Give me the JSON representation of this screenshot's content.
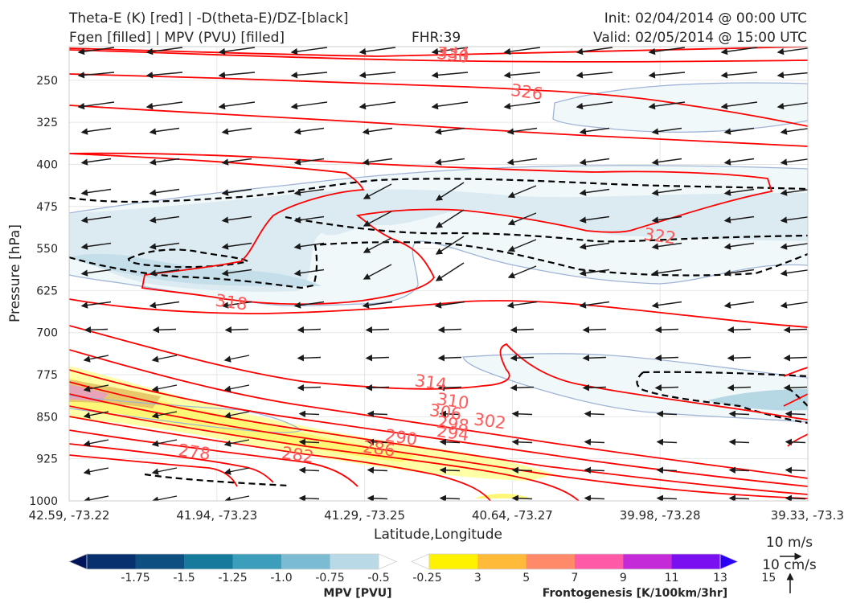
{
  "header": {
    "title_left_1": "Theta-E (K) [red] | -D(theta-E)/DZ-[black]",
    "title_left_2": "Fgen [filled] | MPV (PVU) [filled]",
    "title_center": "FHR:39",
    "title_right_1": "Init: 02/04/2014 @ 00:00 UTC",
    "title_right_2": "Valid: 02/05/2014 @ 15:00 UTC"
  },
  "chart_data": {
    "type": "cross-section",
    "xlabel": "Latitude,Longitude",
    "ylabel": "Pressure [hPa]",
    "x_ticks": [
      "42.59, -73.22",
      "41.94, -73.23",
      "41.29, -73.25",
      "40.64, -73.27",
      "39.98, -73.28",
      "39.33, -73.3"
    ],
    "y_ticks": [
      250,
      325,
      400,
      475,
      550,
      625,
      700,
      775,
      850,
      925,
      1000
    ],
    "ylim": [
      1000,
      190
    ],
    "grid": true,
    "theta_e_contour_labels": [
      {
        "value": "334",
        "x": 0.5,
        "p": 200
      },
      {
        "value": "330",
        "x": 0.5,
        "p": 205
      },
      {
        "value": "326",
        "x": 0.6,
        "p": 271
      },
      {
        "value": "322",
        "x": 0.78,
        "p": 528
      },
      {
        "value": "318",
        "x": 0.2,
        "p": 646
      },
      {
        "value": "314",
        "x": 0.47,
        "p": 789
      },
      {
        "value": "310",
        "x": 0.5,
        "p": 822
      },
      {
        "value": "306",
        "x": 0.49,
        "p": 842
      },
      {
        "value": "302",
        "x": 0.55,
        "p": 858
      },
      {
        "value": "298",
        "x": 0.5,
        "p": 863
      },
      {
        "value": "294",
        "x": 0.5,
        "p": 879
      },
      {
        "value": "290",
        "x": 0.43,
        "p": 887
      },
      {
        "value": "286",
        "x": 0.4,
        "p": 907
      },
      {
        "value": "282",
        "x": 0.29,
        "p": 918
      },
      {
        "value": "278",
        "x": 0.15,
        "p": 913
      }
    ],
    "wind_reference": {
      "horizontal": "10 m/s",
      "vertical": "10 cm/s"
    },
    "colorbars": [
      {
        "title": "MPV [PVU]",
        "ticks": [
          "-1.75",
          "-1.5",
          "-1.25",
          "-1.0",
          "-0.75",
          "-0.5",
          "-0.25"
        ],
        "colors": [
          "#00145a",
          "#06306e",
          "#0d4f80",
          "#167a9c",
          "#3c9ebb",
          "#7bbcd2",
          "#bad9e6",
          "#ffffff"
        ]
      },
      {
        "title": "Frontogenesis [K/100km/3hr]",
        "ticks": [
          "3",
          "5",
          "7",
          "9",
          "11",
          "13",
          "15"
        ],
        "colors": [
          "#ffffff",
          "#fff200",
          "#ffba3a",
          "#ff8a6a",
          "#ff5aa8",
          "#c42ad8",
          "#7a10f0",
          "#2b00f5"
        ]
      }
    ]
  }
}
